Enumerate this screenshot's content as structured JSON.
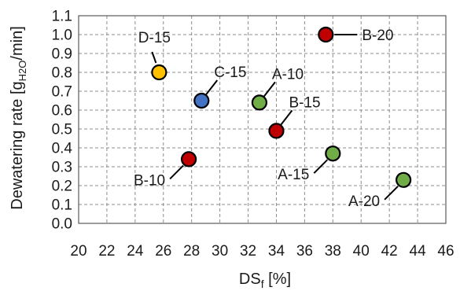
{
  "chart_data": {
    "type": "scatter",
    "title": "",
    "xlabel": {
      "main": "DS",
      "sub": "f",
      "rest": " [%]"
    },
    "ylabel": {
      "main": "Dewatering rate [g",
      "sub": "H2O",
      "rest": "/min]"
    },
    "xlim": [
      20,
      46
    ],
    "ylim": [
      0.0,
      1.1
    ],
    "xticks": [
      "20",
      "22",
      "24",
      "26",
      "28",
      "30",
      "32",
      "34",
      "36",
      "38",
      "40",
      "42",
      "44",
      "46"
    ],
    "yticks": [
      "0.0",
      "0.1",
      "0.2",
      "0.3",
      "0.4",
      "0.5",
      "0.6",
      "0.7",
      "0.8",
      "0.9",
      "1.0",
      "1.1"
    ],
    "grid": true,
    "legend": "none",
    "colors": {
      "A": "#70ad47",
      "B": "#c00000",
      "C": "#4472c4",
      "D": "#ffc000"
    },
    "points": [
      {
        "label": "D-15",
        "group": "D",
        "x": 25.7,
        "y": 0.8,
        "label_pos": "up-left"
      },
      {
        "label": "C-15",
        "group": "C",
        "x": 28.7,
        "y": 0.65,
        "label_pos": "up-right"
      },
      {
        "label": "A-10",
        "group": "A",
        "x": 32.8,
        "y": 0.64,
        "label_pos": "up-right"
      },
      {
        "label": "B-20",
        "group": "B",
        "x": 37.5,
        "y": 1.0,
        "label_pos": "right"
      },
      {
        "label": "B-15",
        "group": "B",
        "x": 34.0,
        "y": 0.49,
        "label_pos": "up-right"
      },
      {
        "label": "B-10",
        "group": "B",
        "x": 27.8,
        "y": 0.34,
        "label_pos": "down-left"
      },
      {
        "label": "A-15",
        "group": "A",
        "x": 38.0,
        "y": 0.37,
        "label_pos": "down-left"
      },
      {
        "label": "A-20",
        "group": "A",
        "x": 43.0,
        "y": 0.23,
        "label_pos": "down-left"
      }
    ]
  }
}
